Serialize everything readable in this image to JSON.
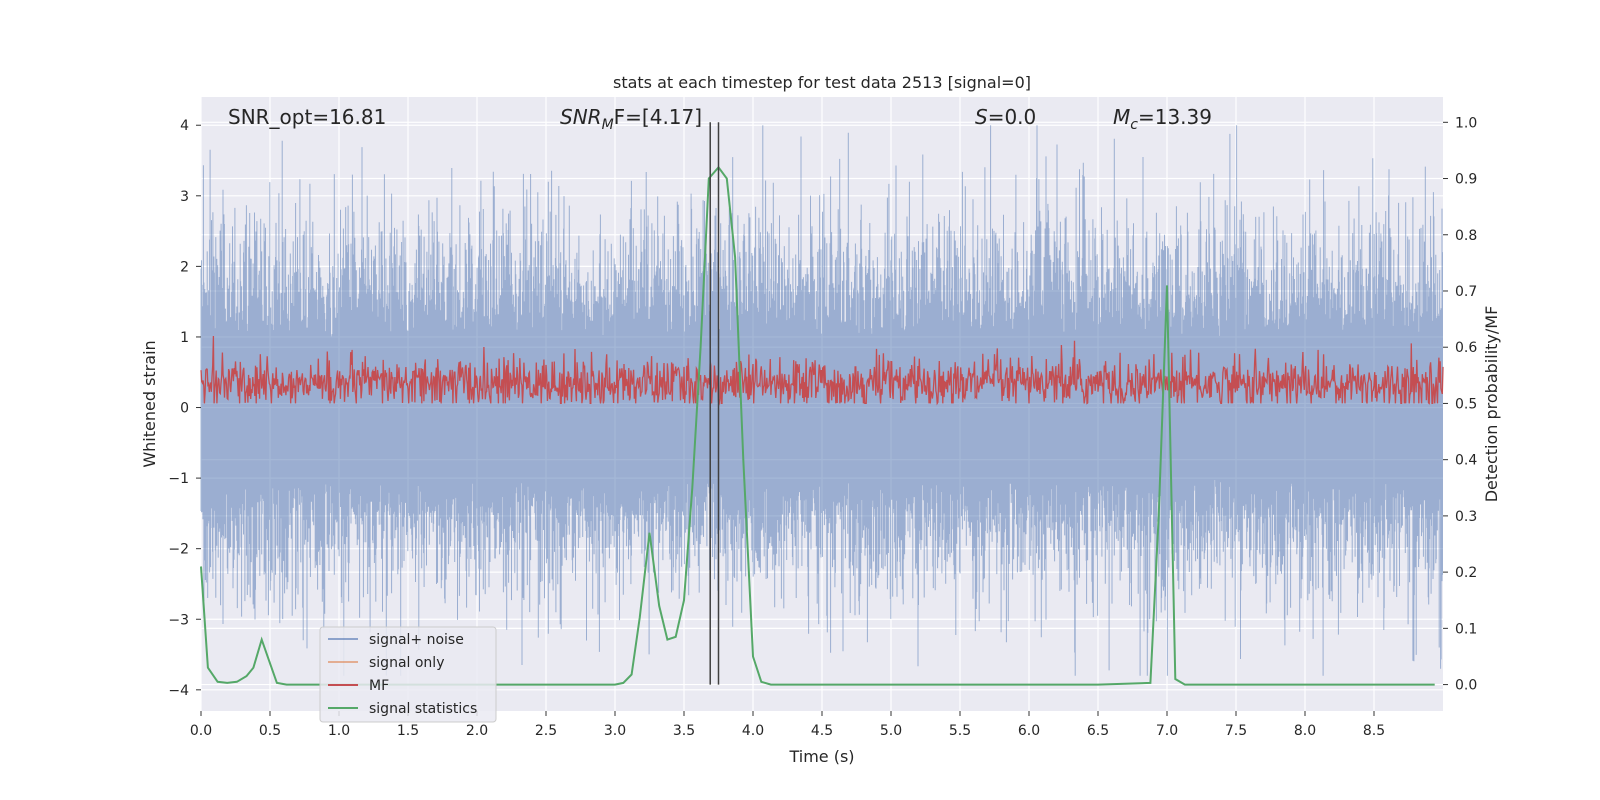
{
  "chart_data": {
    "type": "line",
    "title": "stats at each timestep for test data 2513 [signal=0]",
    "xlabel": "Time (s)",
    "ylabel": "Whitened strain",
    "ylabel_right": "Detection probability/MF",
    "xlim": [
      0,
      9
    ],
    "ylim": [
      -4.3,
      4.4
    ],
    "ylim_right": [
      -0.047,
      1.045
    ],
    "x_ticks": [
      "0.0",
      "0.5",
      "1.0",
      "1.5",
      "2.0",
      "2.5",
      "3.0",
      "3.5",
      "4.0",
      "4.5",
      "5.0",
      "5.5",
      "6.0",
      "6.5",
      "7.0",
      "7.5",
      "8.0",
      "8.5"
    ],
    "y_ticks": [
      "4",
      "3",
      "2",
      "1",
      "0",
      "−1",
      "−2",
      "−3",
      "−4"
    ],
    "y_ticks_right": [
      "1.0",
      "0.9",
      "0.8",
      "0.7",
      "0.6",
      "0.5",
      "0.4",
      "0.3",
      "0.2",
      "0.1",
      "0.0"
    ],
    "grid": true,
    "legend_position": "lower-left",
    "annotations": {
      "snr_opt": "SNR_opt=16.81",
      "snr_mf_main": "SNR",
      "snr_mf_sub": "M",
      "snr_mf_rest": "F=[4.17]",
      "s_main": "S",
      "s_rest": "=0.0",
      "mc_main": "M",
      "mc_sub": "c",
      "mc_rest": "=13.39"
    },
    "vertical_lines_x": [
      3.69,
      3.75
    ],
    "series": [
      {
        "name": "signal+ noise",
        "color": "#4c72b0",
        "description_values": "noise, approx gaussian, sigma ~0.8"
      },
      {
        "name": "signal only",
        "color": "#dd8452"
      },
      {
        "name": "MF",
        "color": "#c44e52",
        "axis": "right"
      },
      {
        "name": "signal statistics",
        "color": "#55a868",
        "axis": "right",
        "x": [
          0.0,
          0.05,
          0.12,
          0.19,
          0.26,
          0.33,
          0.38,
          0.44,
          0.49,
          0.55,
          0.62,
          0.8,
          1.0,
          1.5,
          2.0,
          2.5,
          3.0,
          3.06,
          3.12,
          3.18,
          3.25,
          3.32,
          3.38,
          3.44,
          3.5,
          3.56,
          3.62,
          3.68,
          3.75,
          3.81,
          3.87,
          3.93,
          4.0,
          4.06,
          4.13,
          4.2,
          5.0,
          6.0,
          6.5,
          6.88,
          6.94,
          7.0,
          7.06,
          7.13,
          7.5,
          8.0,
          8.5,
          8.94
        ],
        "values": [
          0.21,
          0.03,
          0.005,
          0.003,
          0.005,
          0.015,
          0.03,
          0.08,
          0.045,
          0.003,
          0.0,
          0.0,
          0.0,
          0.0,
          0.0,
          0.0,
          0.0,
          0.003,
          0.018,
          0.12,
          0.27,
          0.14,
          0.08,
          0.085,
          0.15,
          0.35,
          0.6,
          0.9,
          0.92,
          0.9,
          0.76,
          0.4,
          0.05,
          0.005,
          0.0,
          0.0,
          0.0,
          0.0,
          0.0,
          0.003,
          0.3,
          0.71,
          0.01,
          0.0,
          0.0,
          0.0,
          0.0,
          0.0
        ]
      }
    ]
  },
  "colors": {
    "plot_bg": "#eaeaf2",
    "grid": "#ffffff",
    "noise": "#4c72b0",
    "signal": "#dd8452",
    "mf": "#c44e52",
    "stat": "#55a868",
    "vline": "#404040"
  }
}
